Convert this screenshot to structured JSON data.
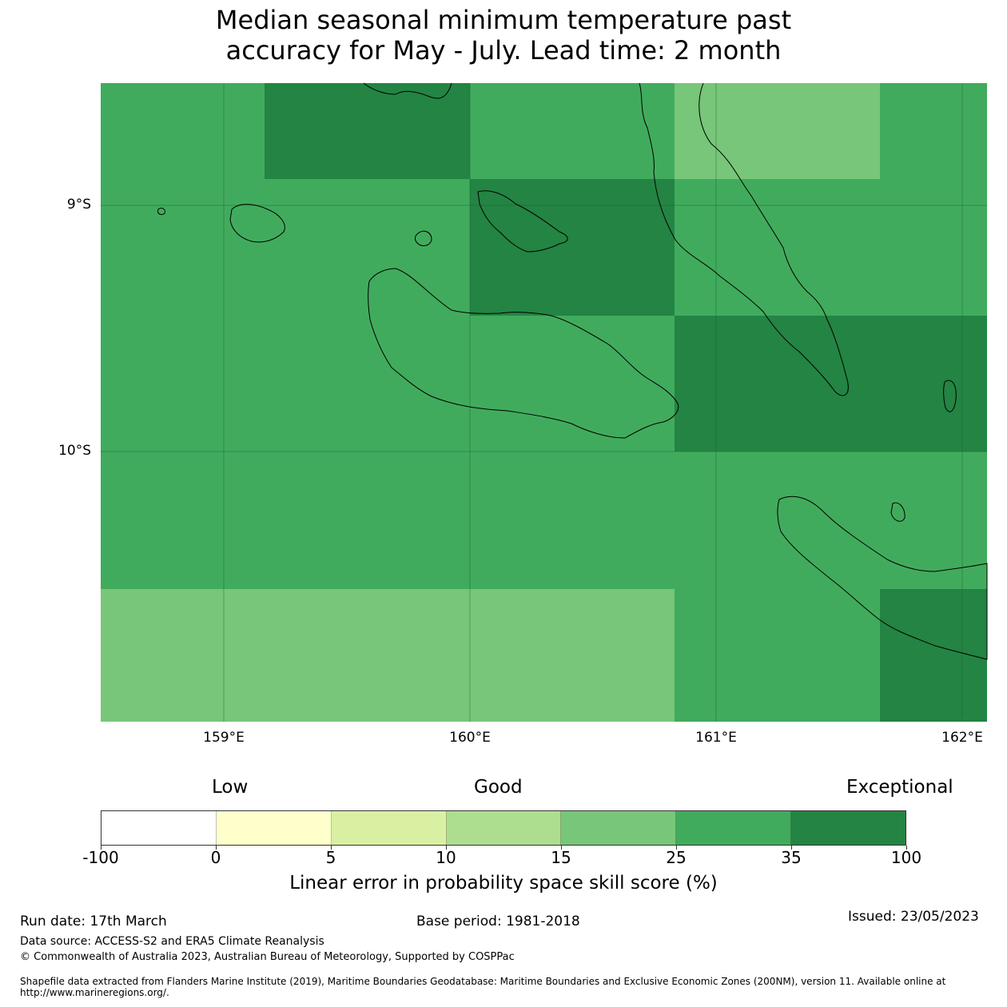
{
  "title": {
    "line1": "Median seasonal minimum temperature past",
    "line2": "accuracy for May - July. Lead time: 2 month"
  },
  "map": {
    "lat_labels": [
      "9°S",
      "10°S"
    ],
    "lon_labels": [
      "159°E",
      "160°E",
      "161°E",
      "162°E"
    ],
    "grid_cells": [
      [
        "25-35",
        "35-100",
        "25-35",
        "15-25",
        "25-35"
      ],
      [
        "25-35",
        "25-35",
        "35-100",
        "25-35",
        "25-35"
      ],
      [
        "25-35",
        "25-35",
        "25-35",
        "35-100",
        "35-100"
      ],
      [
        "25-35",
        "25-35",
        "25-35",
        "25-35",
        "25-35"
      ],
      [
        "15-25",
        "15-25",
        "15-25",
        "25-35",
        "35-100"
      ]
    ]
  },
  "legend": {
    "category_low": "Low",
    "category_good": "Good",
    "category_exceptional": "Exceptional",
    "ticks": [
      "-100",
      "0",
      "5",
      "10",
      "15",
      "25",
      "35",
      "100"
    ],
    "colors": [
      "#ffffff",
      "#ffffcc",
      "#d9f0a3",
      "#addd8e",
      "#78c679",
      "#41ab5d",
      "#238443"
    ],
    "label": "Linear error in probability space skill score (%)"
  },
  "footer": {
    "run_date": "Run date: 17th March",
    "base_period": "Base period: 1981-2018",
    "issued": "Issued: 23/05/2023",
    "data_source": "Data source: ACCESS-S2 and ERA5 Climate Reanalysis",
    "copyright": "© Commonwealth of Australia 2023, Australian Bureau of Meteorology, Supported by COSPPac",
    "shapefile": "Shapefile data extracted from Flanders Marine Institute (2019), Maritime Boundaries Geodatabase: Maritime Boundaries and Exclusive Economic Zones (200NM), version 11. Available online at http://www.marineregions.org/."
  }
}
